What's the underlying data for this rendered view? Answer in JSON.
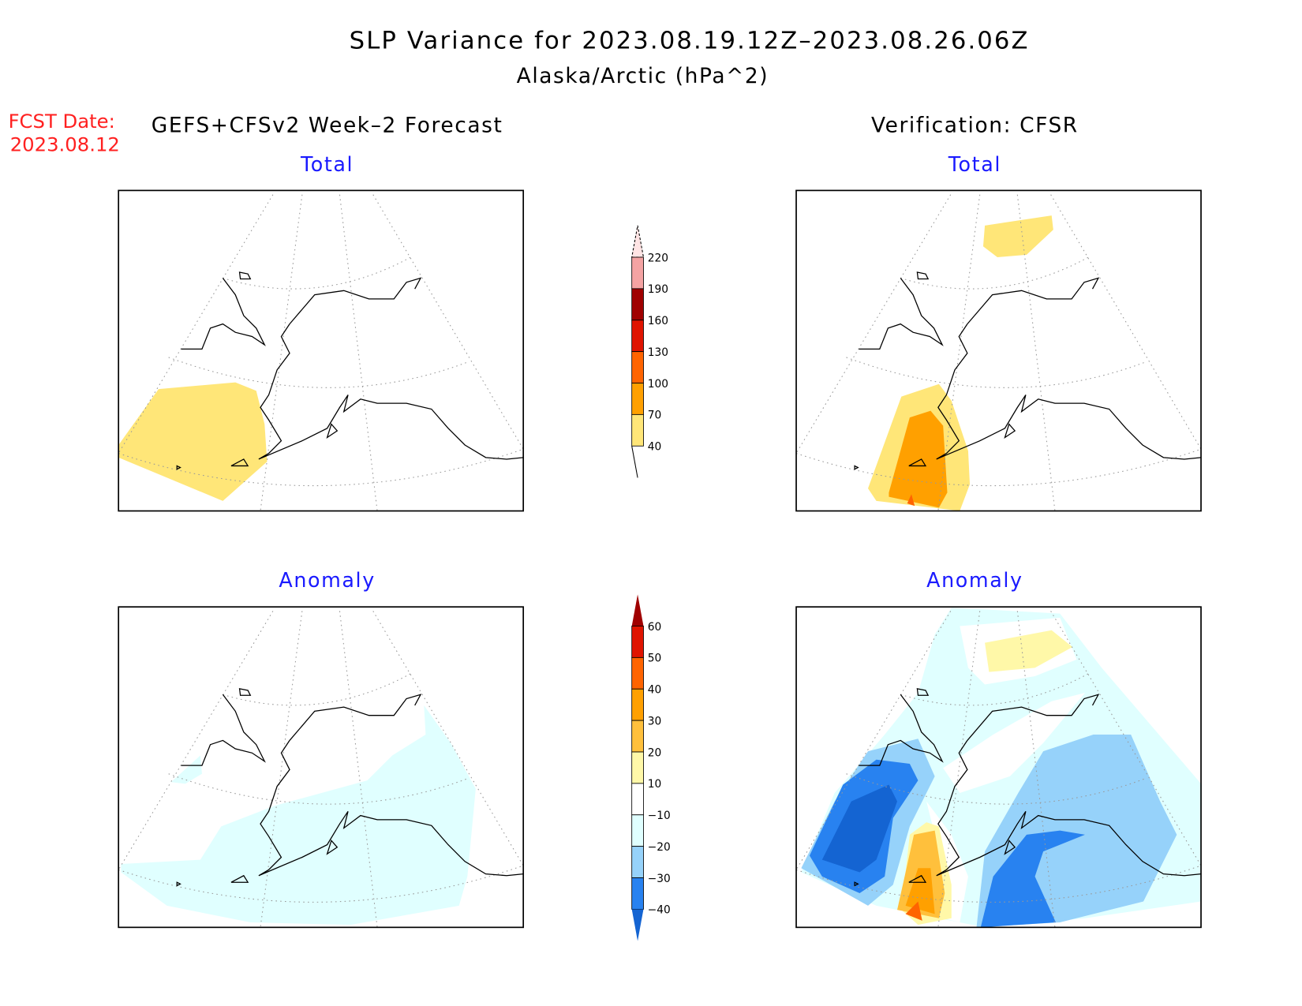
{
  "header": {
    "title": "SLP Variance for 2023.08.19.12Z–2023.08.26.06Z",
    "subtitle": "Alaska/Arctic (hPa^2)",
    "fcst_label": "FCST Date:",
    "fcst_date": "2023.08.12",
    "left_heading": "GEFS+CFSv2 Week–2 Forecast",
    "right_heading": "Verification: CFSR"
  },
  "panels": {
    "forecast_total": "Total",
    "verification_total": "Total",
    "forecast_anomaly": "Anomaly",
    "verification_anomaly": "Anomaly"
  },
  "colorbars": {
    "total": {
      "labels": [
        "220",
        "190",
        "160",
        "130",
        "100",
        "70",
        "40"
      ],
      "colors": [
        "#ffe4e4",
        "#f4a3a3",
        "#a00000",
        "#e01400",
        "#ff6400",
        "#ffa000",
        "#ffe678"
      ],
      "below_color": "#ffffff"
    },
    "anomaly": {
      "labels": [
        "60",
        "50",
        "40",
        "30",
        "20",
        "10",
        "−10",
        "−20",
        "−30",
        "−40"
      ],
      "colors": [
        "#a00000",
        "#e01400",
        "#ff6400",
        "#ffa000",
        "#ffc03c",
        "#fff8a8",
        "#ffffff",
        "#e0ffff",
        "#96d2fa",
        "#2882f0",
        "#1464d2"
      ]
    }
  }
}
